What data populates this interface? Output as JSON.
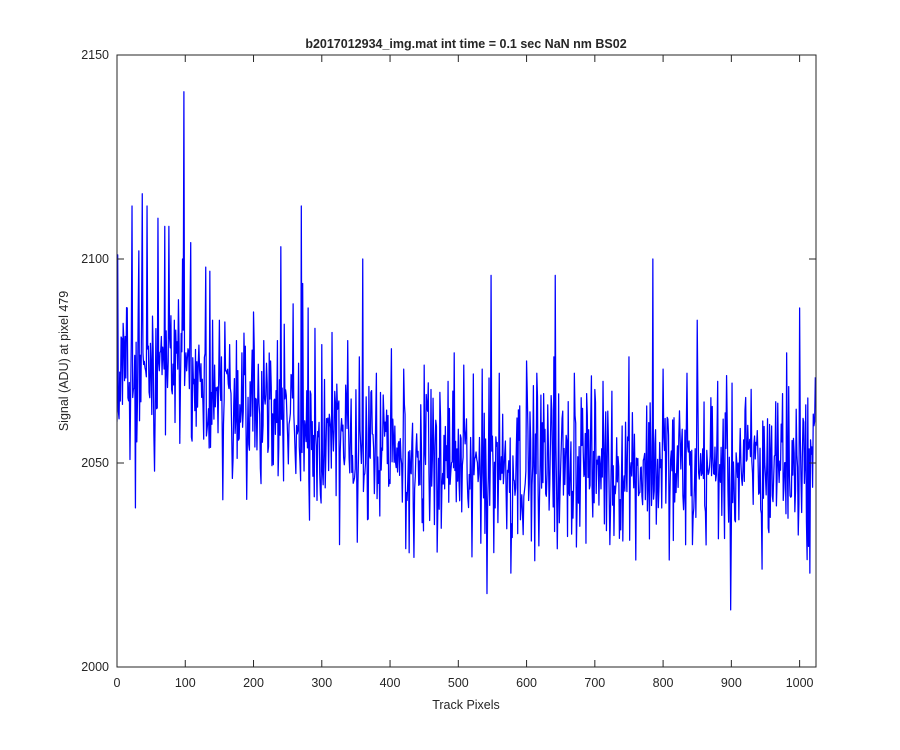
{
  "chart_data": {
    "type": "line",
    "title": "b2017012934_img.mat int time = 0.1 sec  NaN nm BS02",
    "xlabel": "Track Pixels",
    "ylabel": "Signal (ADU) at pixel 479",
    "xlim": [
      0,
      1024
    ],
    "ylim": [
      2000,
      2150
    ],
    "xticks": [
      0,
      100,
      200,
      300,
      400,
      500,
      600,
      700,
      800,
      900,
      1000
    ],
    "yticks": [
      2000,
      2050,
      2100,
      2150
    ],
    "grid": false,
    "line_color": "#0000ff",
    "series": [
      {
        "x_start": 0,
        "x_step": 1,
        "n_points": 1024,
        "trend_points": [
          [
            0,
            2070
          ],
          [
            30,
            2072
          ],
          [
            100,
            2070
          ],
          [
            200,
            2064
          ],
          [
            300,
            2056
          ],
          [
            400,
            2051
          ],
          [
            500,
            2049
          ],
          [
            600,
            2049
          ],
          [
            700,
            2049
          ],
          [
            800,
            2049
          ],
          [
            900,
            2049
          ],
          [
            1023,
            2049
          ]
        ],
        "noise_amplitude": 9,
        "seed": 479,
        "peaks": [
          [
            1,
            2101
          ],
          [
            15,
            2088
          ],
          [
            22,
            2113
          ],
          [
            27,
            2039
          ],
          [
            32,
            2102
          ],
          [
            37,
            2116
          ],
          [
            44,
            2113
          ],
          [
            52,
            2086
          ],
          [
            55,
            2048
          ],
          [
            60,
            2110
          ],
          [
            65,
            2081
          ],
          [
            70,
            2108
          ],
          [
            76,
            2108
          ],
          [
            84,
            2085
          ],
          [
            90,
            2090
          ],
          [
            96,
            2100
          ],
          [
            98,
            2141
          ],
          [
            104,
            2078
          ],
          [
            108,
            2104
          ],
          [
            116,
            2059
          ],
          [
            122,
            2070
          ],
          [
            130,
            2098
          ],
          [
            136,
            2097
          ],
          [
            140,
            2085
          ],
          [
            150,
            2085
          ],
          [
            155,
            2041
          ],
          [
            165,
            2079
          ],
          [
            175,
            2080
          ],
          [
            183,
            2077
          ],
          [
            200,
            2087
          ],
          [
            215,
            2080
          ],
          [
            225,
            2075
          ],
          [
            235,
            2080
          ],
          [
            240,
            2103
          ],
          [
            245,
            2084
          ],
          [
            258,
            2089
          ],
          [
            270,
            2113
          ],
          [
            272,
            2094
          ],
          [
            280,
            2088
          ],
          [
            282,
            2036
          ],
          [
            290,
            2083
          ],
          [
            300,
            2079
          ],
          [
            315,
            2082
          ],
          [
            326,
            2030
          ],
          [
            338,
            2080
          ],
          [
            355,
            2076
          ],
          [
            360,
            2100
          ],
          [
            380,
            2072
          ],
          [
            385,
            2037
          ],
          [
            402,
            2078
          ],
          [
            420,
            2073
          ],
          [
            423,
            2029
          ],
          [
            428,
            2028
          ],
          [
            450,
            2074
          ],
          [
            460,
            2068
          ],
          [
            475,
            2034
          ],
          [
            485,
            2070
          ],
          [
            494,
            2077
          ],
          [
            508,
            2074
          ],
          [
            520,
            2027
          ],
          [
            535,
            2073
          ],
          [
            542,
            2018
          ],
          [
            548,
            2096
          ],
          [
            560,
            2072
          ],
          [
            577,
            2023
          ],
          [
            590,
            2064
          ],
          [
            600,
            2075
          ],
          [
            615,
            2072
          ],
          [
            625,
            2067
          ],
          [
            640,
            2076
          ],
          [
            642,
            2096
          ],
          [
            660,
            2032
          ],
          [
            670,
            2072
          ],
          [
            680,
            2066
          ],
          [
            688,
            2067
          ],
          [
            700,
            2068
          ],
          [
            712,
            2070
          ],
          [
            722,
            2030
          ],
          [
            750,
            2076
          ],
          [
            785,
            2100
          ],
          [
            800,
            2073
          ],
          [
            815,
            2031
          ],
          [
            825,
            2056
          ],
          [
            835,
            2072
          ],
          [
            843,
            2030
          ],
          [
            850,
            2085
          ],
          [
            870,
            2066
          ],
          [
            880,
            2070
          ],
          [
            899,
            2014
          ],
          [
            920,
            2063
          ],
          [
            935,
            2051
          ],
          [
            945,
            2024
          ],
          [
            965,
            2065
          ],
          [
            975,
            2067
          ],
          [
            981,
            2077
          ],
          [
            1000,
            2088
          ],
          [
            1015,
            2023
          ],
          [
            1023,
            2071
          ]
        ]
      }
    ]
  }
}
